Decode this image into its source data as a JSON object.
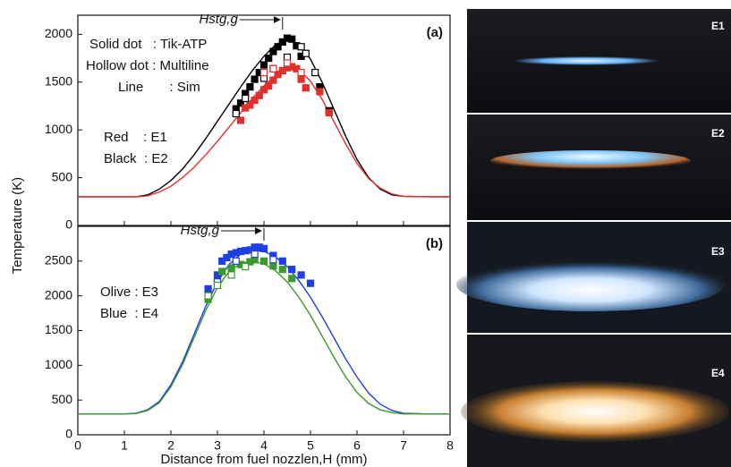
{
  "chart_data": [
    {
      "type": "line",
      "panel_label": "(a)",
      "xlim": [
        0,
        8
      ],
      "xticks": [
        0,
        1,
        2,
        3,
        4,
        5,
        6,
        7,
        8
      ],
      "ylim": [
        0,
        2200
      ],
      "yticks": [
        0,
        500,
        1000,
        1500,
        2000
      ],
      "notes": [
        "Solid dot   : Tik-ATP",
        "Hollow dot : Multiline",
        "Line       : Sim",
        "Red    : E1",
        "Black  : E2"
      ],
      "hstg": {
        "label": "Hstg,g",
        "x": 4.4
      },
      "series": [
        {
          "marker": "line",
          "color": "#000000",
          "x": [
            0,
            0.5,
            1,
            1.25,
            1.5,
            1.75,
            2,
            2.25,
            2.5,
            2.75,
            3,
            3.25,
            3.5,
            3.75,
            4,
            4.25,
            4.5,
            4.75,
            5,
            5.25,
            5.5,
            5.75,
            6,
            6.25,
            6.5,
            6.75,
            7,
            7.5,
            8
          ],
          "values": [
            300,
            300,
            300,
            300,
            320,
            380,
            470,
            590,
            740,
            910,
            1090,
            1270,
            1450,
            1620,
            1770,
            1890,
            1950,
            1900,
            1740,
            1500,
            1220,
            940,
            690,
            500,
            380,
            320,
            305,
            300,
            300
          ]
        },
        {
          "marker": "line",
          "color": "#e0302c",
          "x": [
            0,
            0.5,
            1,
            1.25,
            1.5,
            1.75,
            2,
            2.25,
            2.5,
            2.75,
            3,
            3.25,
            3.5,
            3.75,
            4,
            4.25,
            4.5,
            4.75,
            5,
            5.25,
            5.5,
            5.75,
            6,
            6.25,
            6.5,
            6.75,
            7,
            7.5,
            8
          ],
          "values": [
            300,
            300,
            300,
            300,
            310,
            350,
            410,
            500,
            610,
            740,
            880,
            1030,
            1180,
            1330,
            1460,
            1570,
            1640,
            1630,
            1510,
            1320,
            1090,
            860,
            650,
            490,
            390,
            330,
            305,
            300,
            300
          ]
        },
        {
          "marker": "filled",
          "color": "#000000",
          "x": [
            3.4,
            3.5,
            3.6,
            3.7,
            3.8,
            3.9,
            4.0,
            4.1,
            4.2,
            4.3,
            4.4,
            4.5,
            4.6,
            4.7,
            4.8,
            5.2,
            5.4
          ],
          "values": [
            1220,
            1280,
            1380,
            1450,
            1530,
            1600,
            1680,
            1750,
            1820,
            1870,
            1920,
            1960,
            1950,
            1880,
            1770,
            1450,
            1200
          ]
        },
        {
          "marker": "filled",
          "color": "#e0302c",
          "x": [
            3.5,
            3.6,
            3.7,
            3.8,
            3.9,
            4.0,
            4.1,
            4.2,
            4.3,
            4.4,
            4.5,
            4.6,
            4.7,
            4.8,
            4.9,
            5.2,
            5.4
          ],
          "values": [
            1100,
            1230,
            1260,
            1310,
            1360,
            1420,
            1460,
            1520,
            1580,
            1620,
            1650,
            1660,
            1640,
            1530,
            1440,
            1400,
            1180
          ]
        },
        {
          "marker": "hollow",
          "color": "#000000",
          "x": [
            3.4,
            3.6,
            4.0,
            4.2,
            4.5,
            4.8,
            4.9,
            5.1
          ],
          "values": [
            1170,
            1330,
            1540,
            1640,
            1760,
            1870,
            1800,
            1600
          ]
        },
        {
          "marker": "hollow",
          "color": "#e0302c",
          "x": [
            4.0,
            4.2,
            4.5,
            4.8
          ],
          "values": [
            1600,
            1640,
            1700,
            1600
          ]
        }
      ]
    },
    {
      "type": "line",
      "panel_label": "(b)",
      "xlabel": "Distance from fuel nozzlen,H (mm)",
      "ylabel": "Temperature (K)",
      "xlim": [
        0,
        8
      ],
      "xticks": [
        0,
        1,
        2,
        3,
        4,
        5,
        6,
        7,
        8
      ],
      "ylim": [
        0,
        3000
      ],
      "yticks": [
        0,
        500,
        1000,
        1500,
        2000,
        2500
      ],
      "notes": [
        "Olive : E3",
        "Blue  : E4"
      ],
      "hstg": {
        "label": "Hstg,g",
        "x": 4.0
      },
      "series": [
        {
          "marker": "line",
          "color": "#1f3fe0",
          "x": [
            0,
            0.5,
            1,
            1.25,
            1.5,
            1.75,
            2,
            2.25,
            2.5,
            2.75,
            3,
            3.25,
            3.5,
            3.75,
            4,
            4.25,
            4.5,
            4.75,
            5,
            5.25,
            5.5,
            5.75,
            6,
            6.25,
            6.5,
            6.75,
            7,
            7.5,
            8
          ],
          "values": [
            300,
            300,
            300,
            310,
            360,
            480,
            720,
            1050,
            1450,
            1850,
            2200,
            2450,
            2600,
            2650,
            2640,
            2560,
            2420,
            2220,
            1980,
            1700,
            1400,
            1100,
            830,
            600,
            440,
            350,
            310,
            300,
            300
          ]
        },
        {
          "marker": "line",
          "color": "#3a9a2a",
          "x": [
            0,
            0.5,
            1,
            1.25,
            1.5,
            1.75,
            2,
            2.25,
            2.5,
            2.75,
            3,
            3.25,
            3.5,
            3.75,
            4,
            4.25,
            4.5,
            4.75,
            5,
            5.25,
            5.5,
            5.75,
            6,
            6.25,
            6.5,
            6.75,
            7,
            7.5,
            8
          ],
          "values": [
            300,
            300,
            300,
            305,
            350,
            460,
            690,
            1010,
            1400,
            1790,
            2120,
            2350,
            2470,
            2500,
            2460,
            2360,
            2200,
            1980,
            1720,
            1420,
            1120,
            840,
            610,
            450,
            360,
            320,
            300,
            300,
            300
          ]
        },
        {
          "marker": "filled",
          "color": "#1f3fe0",
          "x": [
            2.8,
            3.0,
            3.1,
            3.2,
            3.3,
            3.4,
            3.5,
            3.6,
            3.7,
            3.8,
            3.9,
            4.0,
            4.2,
            4.4,
            4.6,
            4.8,
            5.0
          ],
          "values": [
            2100,
            2300,
            2500,
            2550,
            2600,
            2620,
            2640,
            2650,
            2660,
            2700,
            2700,
            2680,
            2580,
            2500,
            2380,
            2300,
            2180
          ]
        },
        {
          "marker": "filled",
          "color": "#3a9a2a",
          "x": [
            2.8,
            3.0,
            3.1,
            3.3,
            3.5,
            3.7,
            3.8,
            4.0,
            4.2,
            4.4,
            4.6
          ],
          "values": [
            1950,
            2200,
            2350,
            2400,
            2450,
            2490,
            2520,
            2500,
            2430,
            2380,
            2250
          ]
        },
        {
          "marker": "hollow",
          "color": "#1f3fe0",
          "x": [
            3.0,
            3.4,
            3.8,
            4.2
          ],
          "values": [
            2200,
            2500,
            2600,
            2520
          ]
        },
        {
          "marker": "hollow",
          "color": "#3a9a2a",
          "x": [
            2.8,
            3.0,
            3.3,
            3.6
          ],
          "values": [
            2000,
            2150,
            2300,
            2420
          ]
        }
      ]
    }
  ],
  "flame_images": [
    "E1",
    "E2",
    "E3",
    "E4"
  ]
}
